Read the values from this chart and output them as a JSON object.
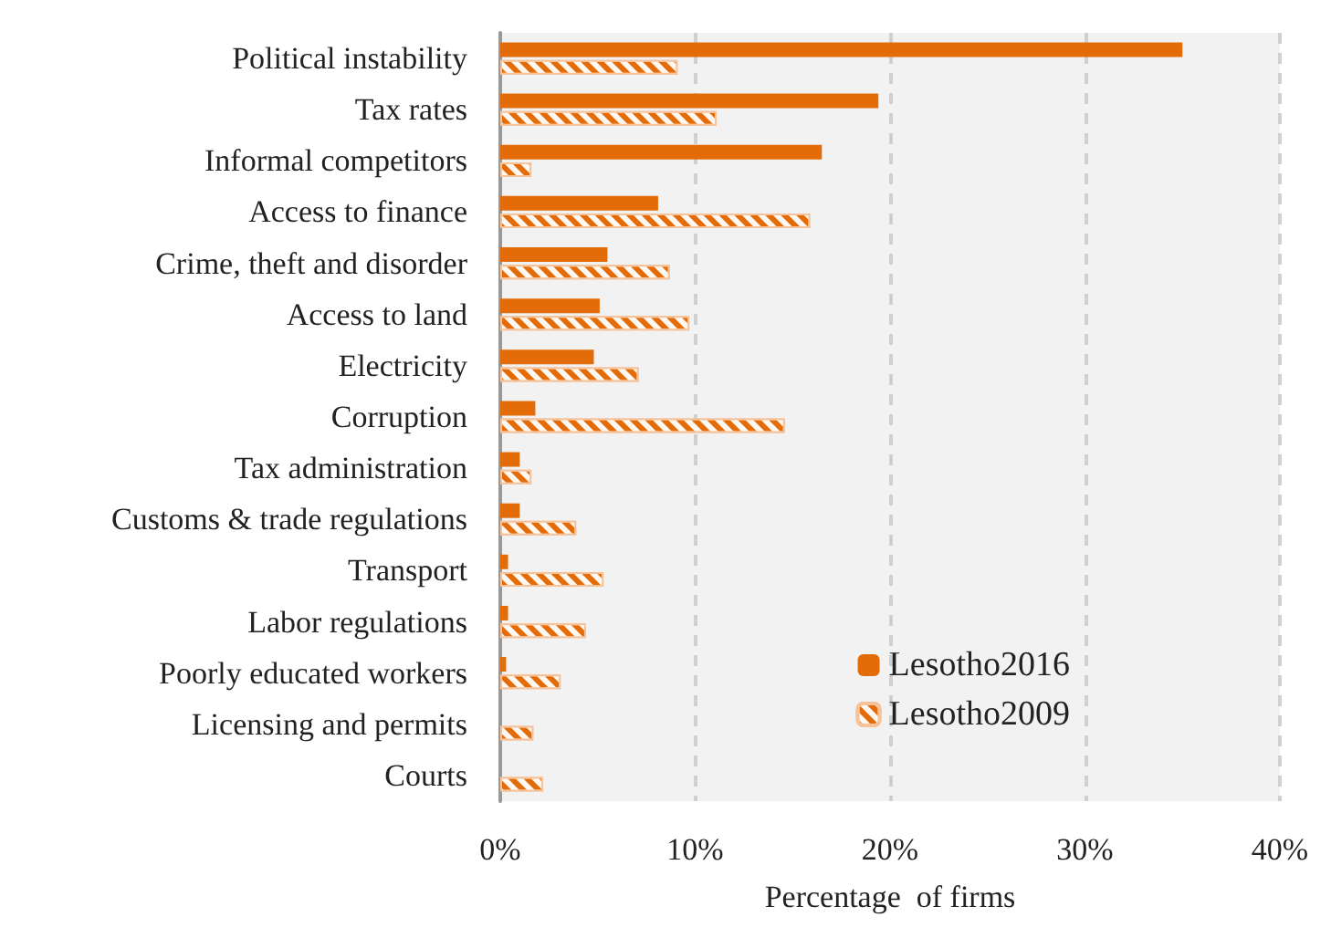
{
  "chart_data": {
    "type": "bar",
    "orientation": "horizontal",
    "xlabel": "Percentage  of firms",
    "categories": [
      "Political instability",
      "Tax rates",
      "Informal competitors",
      "Access to finance",
      "Crime, theft and disorder",
      "Access to land",
      "Electricity",
      "Corruption",
      "Tax administration",
      "Customs & trade regulations",
      "Transport",
      "Labor regulations",
      "Poorly educated workers",
      "Licensing and permits",
      "Courts"
    ],
    "series": [
      {
        "name": "Lesotho2016",
        "color": "#e36c09",
        "values": [
          35.0,
          19.4,
          16.5,
          8.1,
          5.5,
          5.1,
          4.8,
          1.8,
          1.0,
          1.0,
          0.4,
          0.4,
          0.3,
          0,
          0
        ]
      },
      {
        "name": "Lesotho2009",
        "color": "#e36c09",
        "values": [
          9.1,
          11.1,
          1.6,
          15.9,
          8.7,
          9.7,
          7.1,
          14.6,
          1.6,
          3.9,
          5.3,
          4.4,
          3.1,
          1.7,
          2.2
        ]
      }
    ],
    "xlim": [
      0,
      40
    ],
    "xticks": [
      {
        "value": 0,
        "label": "0%"
      },
      {
        "value": 10,
        "label": "10%"
      },
      {
        "value": 20,
        "label": "20%"
      },
      {
        "value": 30,
        "label": "30%"
      },
      {
        "value": 40,
        "label": "40%"
      }
    ],
    "grid": "x",
    "legend": "bottom right"
  }
}
